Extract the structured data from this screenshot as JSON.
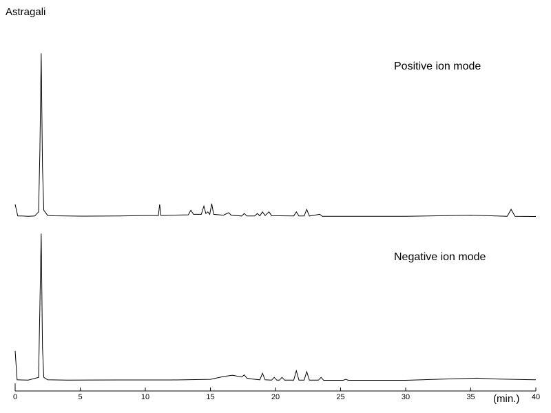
{
  "chart_data": [
    {
      "type": "line",
      "title": "Astragali",
      "annotation": "Positive ion mode",
      "color": "#000000",
      "xlim": [
        0,
        40
      ],
      "ylim": [
        0,
        100
      ],
      "x": [
        0,
        0.2,
        0.5,
        1,
        1.5,
        1.8,
        1.9,
        2,
        2.1,
        2.2,
        2.5,
        3,
        5,
        8,
        10,
        11,
        11.1,
        11.2,
        12,
        13.3,
        13.5,
        13.7,
        14.3,
        14.5,
        14.65,
        14.8,
        14.95,
        15.1,
        15.25,
        16,
        16.4,
        16.6,
        17.4,
        17.6,
        17.8,
        18.4,
        18.6,
        18.8,
        19,
        19.2,
        19.5,
        19.7,
        21.4,
        21.6,
        21.8,
        22.2,
        22.4,
        22.6,
        23.4,
        23.6,
        30,
        35,
        37.8,
        38.1,
        38.4,
        40
      ],
      "values": [
        7.5,
        0.5,
        0.5,
        0.3,
        0.5,
        3,
        40,
        99,
        30,
        4,
        0.8,
        0.6,
        0.4,
        0.5,
        0.8,
        0.8,
        7.5,
        0.8,
        1,
        1.2,
        4,
        1.5,
        1.5,
        6.5,
        2,
        3,
        1.5,
        8,
        1.5,
        1,
        2.5,
        1,
        0.5,
        2,
        0.5,
        0.5,
        2,
        0.6,
        3,
        0.8,
        3,
        0.7,
        0.5,
        3,
        0.5,
        0.5,
        4.5,
        0.5,
        1.5,
        0.3,
        0.3,
        1,
        0.3,
        4.5,
        0.3,
        0.2
      ]
    },
    {
      "type": "line",
      "annotation": "Negative ion mode",
      "xlabel": "(min.)",
      "color": "#000000",
      "xlim": [
        0,
        40
      ],
      "ylim": [
        0,
        100
      ],
      "xticks": [
        0,
        5,
        10,
        15,
        20,
        25,
        30,
        35,
        40
      ],
      "x": [
        0,
        0.15,
        0.5,
        1,
        1.8,
        1.9,
        2,
        2.1,
        2.2,
        2.5,
        4,
        8,
        12,
        15,
        16,
        16.7,
        17.4,
        17.6,
        17.8,
        18.2,
        18.8,
        19,
        19.2,
        19.7,
        19.9,
        20.1,
        20.3,
        20.5,
        20.7,
        21.4,
        21.6,
        21.8,
        22.2,
        22.4,
        22.6,
        23.3,
        23.5,
        23.7,
        25.2,
        25.4,
        25.6,
        30,
        34,
        35.5,
        37,
        40
      ],
      "values": [
        18,
        0.5,
        0.4,
        0.3,
        2,
        45,
        89,
        20,
        2,
        0.5,
        0.3,
        0.4,
        0.4,
        0.8,
        2.5,
        3.3,
        2.2,
        3.5,
        1.5,
        1,
        0.5,
        4.5,
        0.5,
        0.3,
        2,
        0.3,
        0.3,
        2,
        0.3,
        0.3,
        6,
        0.3,
        0.3,
        5.5,
        0.3,
        0.3,
        2,
        0.2,
        0.2,
        0.8,
        0.2,
        0.2,
        1.2,
        1.5,
        1,
        0.5
      ]
    }
  ]
}
